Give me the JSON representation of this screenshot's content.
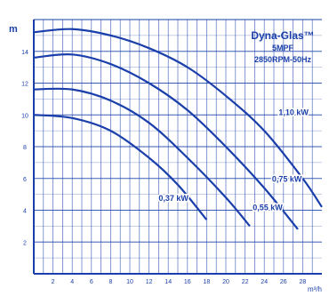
{
  "chart_data": {
    "type": "line",
    "title_lines": [
      "Dyna-Glas™",
      "5MPF",
      "2850RPM-50Hz"
    ],
    "y_unit": "m",
    "x_unit": "m³/h",
    "xlim": [
      0,
      30
    ],
    "ylim": [
      0,
      16
    ],
    "x_ticks": [
      2,
      4,
      6,
      8,
      10,
      12,
      14,
      16,
      18,
      20,
      22,
      24,
      26,
      28
    ],
    "y_ticks": [
      2,
      4,
      6,
      8,
      10,
      12,
      14
    ],
    "grid": true,
    "series": [
      {
        "name": "1,10 kW",
        "color": "#1a3faa",
        "x": [
          0,
          4,
          8,
          12,
          16,
          20,
          24,
          28,
          30
        ],
        "y": [
          15.2,
          15.4,
          15.0,
          14.2,
          13.0,
          11.2,
          9.0,
          6.0,
          4.2
        ]
      },
      {
        "name": "0,75 kW",
        "color": "#1a3faa",
        "x": [
          0,
          4,
          8,
          12,
          16,
          20,
          24,
          27.5
        ],
        "y": [
          13.6,
          13.8,
          13.2,
          12.0,
          10.3,
          8.0,
          5.4,
          2.8
        ]
      },
      {
        "name": "0,55 kW",
        "color": "#1a3faa",
        "x": [
          0,
          4,
          8,
          12,
          16,
          20,
          22.5
        ],
        "y": [
          11.6,
          11.6,
          10.9,
          9.5,
          7.3,
          4.8,
          3.0
        ]
      },
      {
        "name": "0,37 kW",
        "color": "#1a3faa",
        "x": [
          0,
          4,
          8,
          12,
          15,
          18
        ],
        "y": [
          10.0,
          9.8,
          9.0,
          7.3,
          5.6,
          3.4
        ]
      }
    ],
    "annotations": [
      {
        "text": "1,10 kW",
        "series": 0
      },
      {
        "text": "0,75 kW",
        "series": 1
      },
      {
        "text": "0,55 kW",
        "series": 2
      },
      {
        "text": "0,37 kW",
        "series": 3
      }
    ]
  }
}
